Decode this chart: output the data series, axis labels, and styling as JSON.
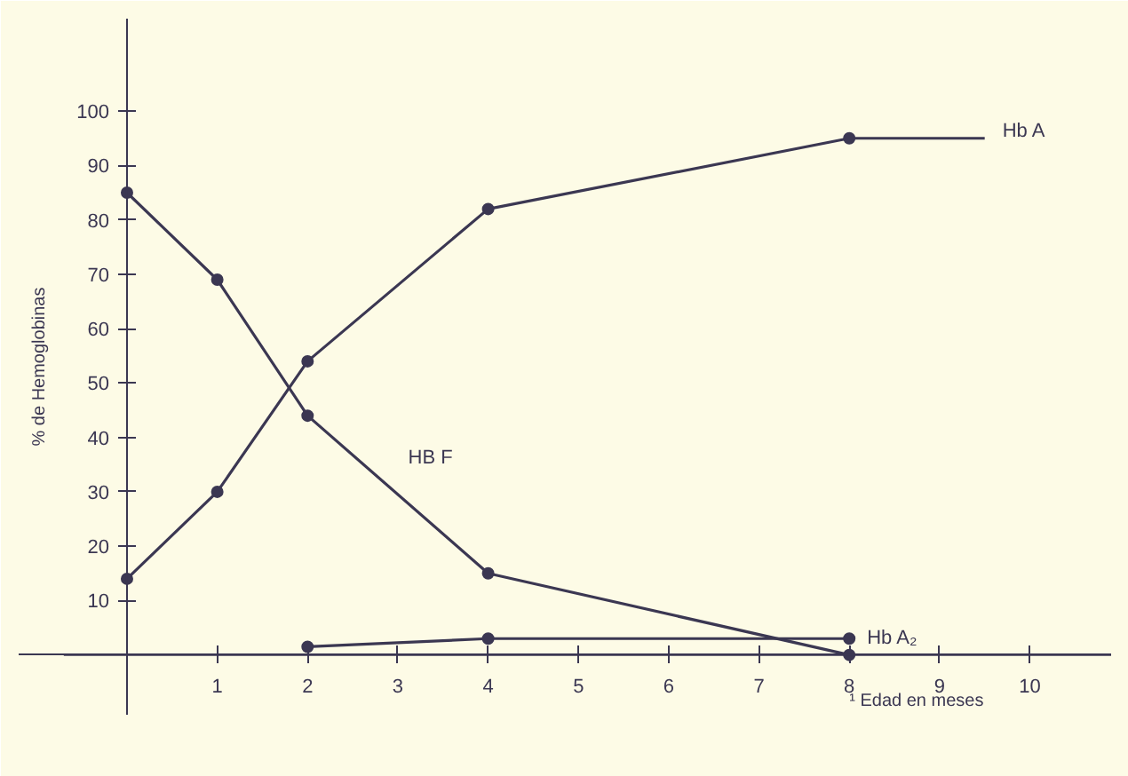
{
  "chart_data": {
    "type": "line",
    "ylabel": "% de Hemoglobinas",
    "xlabel": "¹ Edad en meses",
    "xlim": [
      -1.2,
      10.9
    ],
    "ylim": [
      -11,
      117
    ],
    "xticks": [
      1,
      2,
      3,
      4,
      5,
      6,
      7,
      8,
      9,
      10
    ],
    "yticks": [
      10,
      20,
      30,
      40,
      50,
      60,
      70,
      80,
      90,
      100
    ],
    "series": [
      {
        "name": "Hb A",
        "color": "#3b3752",
        "x": [
          0,
          1,
          2,
          4,
          8,
          9.5
        ],
        "values": [
          14,
          30,
          54,
          82,
          95,
          95
        ]
      },
      {
        "name": "HB F",
        "color": "#3b3752",
        "x": [
          0,
          1,
          2,
          4,
          8
        ],
        "values": [
          85,
          69,
          44,
          15,
          0
        ]
      },
      {
        "name": "Hb A₂",
        "color": "#3b3752",
        "x": [
          2,
          4,
          8
        ],
        "values": [
          1.5,
          3,
          3
        ]
      }
    ],
    "marker": "circle",
    "line_style": "solid",
    "grid": false
  }
}
